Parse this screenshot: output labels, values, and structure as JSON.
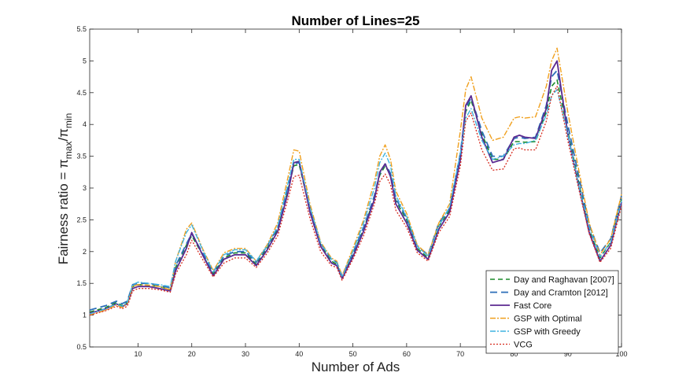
{
  "chart_data": {
    "type": "line",
    "title": "Number of Lines=25",
    "xlabel": "Number of Ads",
    "ylabel": {
      "prefix": "Fairness ratio = π",
      "sub1": "max",
      "mid": "/π",
      "sub2": "min"
    },
    "xlim": [
      1,
      100
    ],
    "ylim": [
      0.5,
      5.5
    ],
    "xticks": [
      10,
      20,
      30,
      40,
      50,
      60,
      70,
      80,
      90,
      100
    ],
    "yticks": [
      0.5,
      1,
      1.5,
      2,
      2.5,
      3,
      3.5,
      4,
      4.5,
      5,
      5.5
    ],
    "ytick_labels": [
      "0.5",
      "1",
      "1.5",
      "2",
      "2.5",
      "3",
      "3.5",
      "4",
      "4.5",
      "5",
      "5.5"
    ],
    "grid": false,
    "legend_position": "bottom-right",
    "x": [
      1,
      4,
      6,
      7,
      8,
      9,
      10,
      12,
      14,
      16,
      17,
      19,
      20,
      22,
      24,
      26,
      28,
      30,
      32,
      34,
      36,
      38,
      39,
      40,
      42,
      44,
      46,
      47,
      48,
      50,
      52,
      54,
      55,
      56,
      57,
      58,
      60,
      62,
      64,
      66,
      68,
      70,
      71,
      72,
      74,
      76,
      78,
      80,
      81,
      82,
      84,
      86,
      87,
      88,
      90,
      92,
      94,
      96,
      98,
      100
    ],
    "series": [
      {
        "name": "Day and Raghavan [2007]",
        "color": "#1a8a2a",
        "dash": "6,4",
        "width": 1.6,
        "values": [
          1.05,
          1.12,
          1.2,
          1.15,
          1.2,
          1.45,
          1.48,
          1.47,
          1.45,
          1.4,
          1.75,
          2.1,
          2.25,
          1.95,
          1.65,
          1.9,
          1.98,
          1.98,
          1.8,
          2.05,
          2.35,
          3.0,
          3.35,
          3.37,
          2.65,
          2.1,
          1.85,
          1.8,
          1.6,
          1.95,
          2.35,
          2.85,
          3.2,
          3.35,
          3.2,
          2.8,
          2.5,
          2.05,
          1.9,
          2.4,
          2.65,
          3.5,
          4.2,
          4.38,
          3.85,
          3.45,
          3.45,
          3.73,
          3.73,
          3.72,
          3.73,
          4.2,
          4.6,
          4.7,
          3.9,
          3.1,
          2.35,
          1.9,
          2.15,
          2.82
        ]
      },
      {
        "name": "Day and Cramton [2012]",
        "color": "#2c6fb8",
        "dash": "9,5",
        "width": 1.8,
        "values": [
          1.08,
          1.15,
          1.22,
          1.18,
          1.22,
          1.48,
          1.5,
          1.5,
          1.47,
          1.43,
          1.78,
          2.12,
          2.28,
          1.98,
          1.68,
          1.93,
          2.0,
          2.0,
          1.83,
          2.08,
          2.38,
          3.05,
          3.38,
          3.4,
          2.68,
          2.13,
          1.88,
          1.83,
          1.62,
          1.98,
          2.38,
          2.88,
          3.23,
          3.38,
          3.23,
          2.83,
          2.53,
          2.08,
          1.95,
          2.45,
          2.68,
          3.55,
          4.25,
          4.42,
          3.9,
          3.5,
          3.5,
          3.78,
          3.8,
          3.78,
          3.8,
          4.3,
          4.75,
          4.85,
          4.0,
          3.2,
          2.42,
          1.98,
          2.2,
          2.88
        ]
      },
      {
        "name": "Fast Core",
        "color": "#5b2a91",
        "dash": "",
        "width": 1.8,
        "values": [
          1.03,
          1.1,
          1.18,
          1.13,
          1.18,
          1.42,
          1.45,
          1.45,
          1.42,
          1.38,
          1.7,
          2.05,
          2.3,
          1.95,
          1.62,
          1.88,
          1.95,
          1.95,
          1.78,
          2.02,
          2.32,
          2.95,
          3.4,
          3.42,
          2.62,
          2.08,
          1.82,
          1.78,
          1.58,
          1.92,
          2.32,
          2.82,
          3.25,
          3.38,
          3.18,
          2.75,
          2.45,
          2.02,
          1.88,
          2.35,
          2.62,
          3.45,
          4.3,
          4.45,
          3.8,
          3.4,
          3.45,
          3.8,
          3.83,
          3.8,
          3.78,
          4.25,
          4.85,
          5.0,
          3.85,
          3.05,
          2.3,
          1.85,
          2.1,
          2.78
        ]
      },
      {
        "name": "GSP with Optimal",
        "color": "#f0a01e",
        "dash": "7,2,2,2",
        "width": 1.4,
        "values": [
          1.0,
          1.08,
          1.16,
          1.12,
          1.18,
          1.45,
          1.48,
          1.47,
          1.45,
          1.4,
          1.85,
          2.35,
          2.45,
          2.05,
          1.7,
          1.98,
          2.05,
          2.05,
          1.85,
          2.1,
          2.45,
          3.2,
          3.6,
          3.58,
          2.75,
          2.15,
          1.9,
          1.85,
          1.62,
          2.05,
          2.5,
          3.1,
          3.5,
          3.68,
          3.45,
          2.95,
          2.6,
          2.1,
          1.95,
          2.45,
          2.75,
          3.9,
          4.55,
          4.75,
          4.1,
          3.75,
          3.8,
          4.1,
          4.12,
          4.1,
          4.12,
          4.6,
          5.0,
          5.2,
          4.2,
          3.3,
          2.45,
          1.95,
          2.2,
          2.9
        ]
      },
      {
        "name": "GSP with Greedy",
        "color": "#3fb4e0",
        "dash": "7,2,2,2",
        "width": 1.4,
        "values": [
          1.02,
          1.1,
          1.18,
          1.14,
          1.2,
          1.48,
          1.52,
          1.5,
          1.48,
          1.45,
          1.85,
          2.3,
          2.42,
          2.03,
          1.68,
          1.95,
          2.03,
          2.03,
          1.85,
          2.08,
          2.4,
          3.1,
          3.45,
          3.45,
          2.7,
          2.13,
          1.88,
          1.83,
          1.6,
          2.0,
          2.45,
          3.0,
          3.4,
          3.55,
          3.35,
          2.88,
          2.55,
          2.08,
          1.93,
          2.4,
          2.7,
          3.55,
          4.1,
          4.25,
          3.75,
          3.45,
          3.5,
          3.68,
          3.7,
          3.7,
          3.75,
          4.15,
          4.45,
          4.55,
          3.85,
          3.05,
          2.38,
          1.92,
          2.15,
          2.8
        ]
      },
      {
        "name": "VCG",
        "color": "#d62a1e",
        "dash": "2,2",
        "width": 1.3,
        "values": [
          1.0,
          1.07,
          1.14,
          1.1,
          1.14,
          1.38,
          1.42,
          1.42,
          1.4,
          1.36,
          1.65,
          1.95,
          2.18,
          1.88,
          1.6,
          1.82,
          1.9,
          1.9,
          1.75,
          1.97,
          2.25,
          2.85,
          3.18,
          3.2,
          2.52,
          2.0,
          1.78,
          1.75,
          1.55,
          1.88,
          2.25,
          2.75,
          3.1,
          3.22,
          3.05,
          2.65,
          2.38,
          1.98,
          1.85,
          2.3,
          2.55,
          3.35,
          4.05,
          4.18,
          3.6,
          3.28,
          3.3,
          3.62,
          3.63,
          3.6,
          3.6,
          4.05,
          4.45,
          4.6,
          3.75,
          3.0,
          2.28,
          1.83,
          2.05,
          2.72
        ]
      }
    ]
  }
}
